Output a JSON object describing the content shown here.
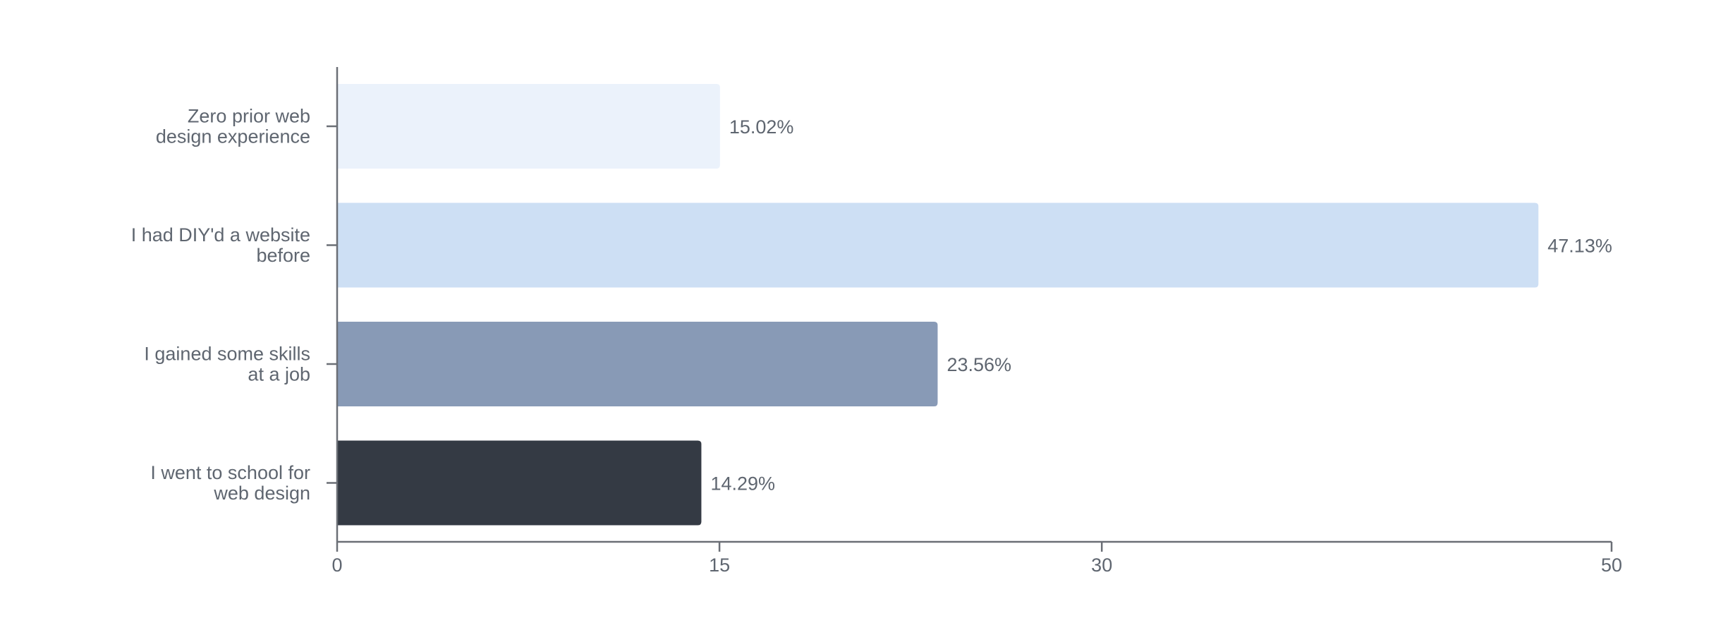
{
  "chart_data": {
    "type": "bar",
    "orientation": "horizontal",
    "title": "",
    "xlabel": "",
    "ylabel": "",
    "categories": [
      [
        "Zero prior web",
        "design experience"
      ],
      [
        "I had DIY'd a website",
        "before"
      ],
      [
        "I gained some skills",
        "at a job"
      ],
      [
        "I went to school for",
        "web design"
      ]
    ],
    "values": [
      15.02,
      47.13,
      23.56,
      14.29
    ],
    "value_labels": [
      "15.02%",
      "47.13%",
      "23.56%",
      "14.29%"
    ],
    "bar_colors": [
      "#ebf2fb",
      "#cddff4",
      "#889ab6",
      "#343a44"
    ],
    "xlim": [
      0,
      50
    ],
    "xticks": [
      0,
      15,
      30,
      50
    ],
    "xtick_labels": [
      "0",
      "15",
      "30",
      "50"
    ],
    "grid": false,
    "legend": "none"
  }
}
